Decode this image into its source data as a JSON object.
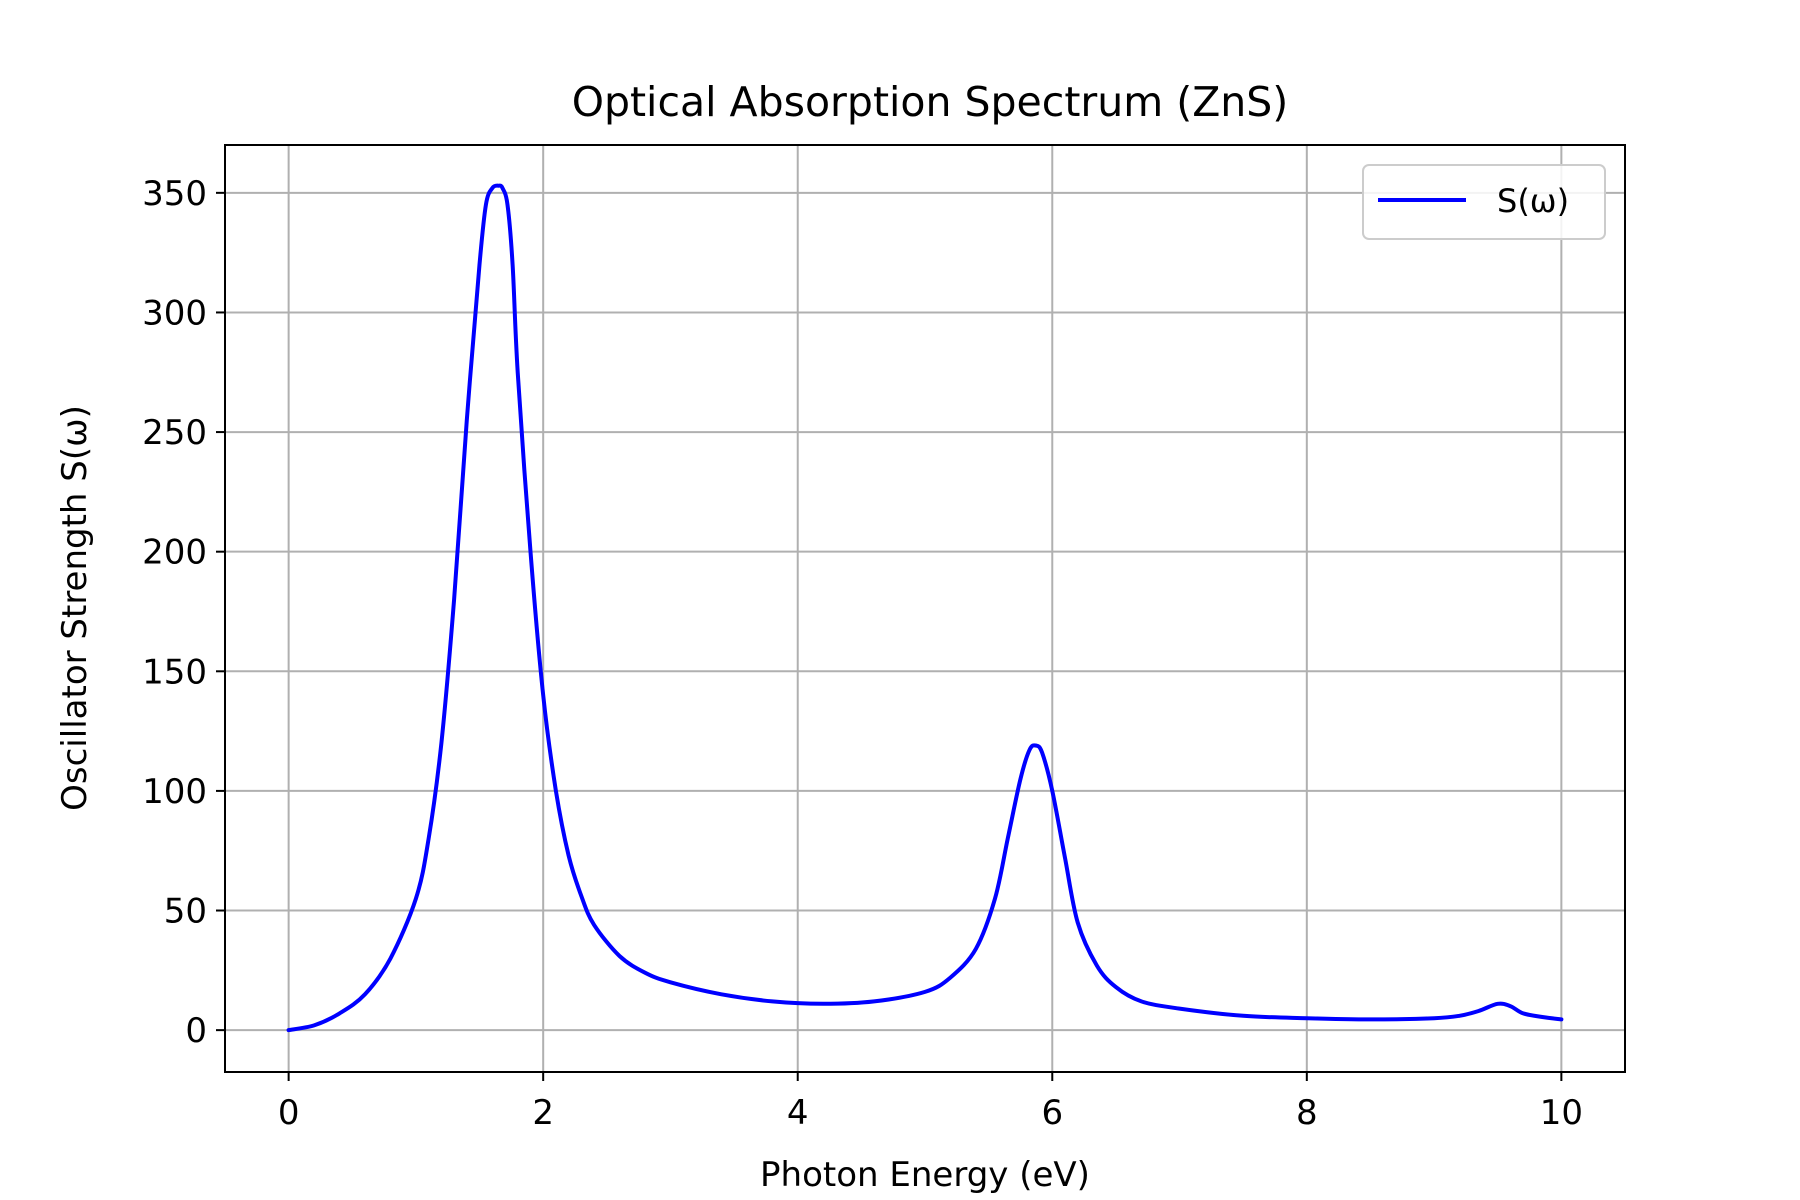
{
  "chart_data": {
    "type": "line",
    "title": "Optical Absorption Spectrum (ZnS)",
    "xlabel": "Photon Energy (eV)",
    "ylabel": "Oscillator Strength S(ω)",
    "xlim": [
      -0.5,
      10.5
    ],
    "ylim": [
      -17.5,
      370
    ],
    "xticks": [
      0,
      2,
      4,
      6,
      8,
      10
    ],
    "yticks": [
      0,
      50,
      100,
      150,
      200,
      250,
      300,
      350
    ],
    "grid": true,
    "legend_position": "top-right",
    "series": [
      {
        "name": "S(ω)",
        "color": "#0000ff",
        "x": [
          0,
          0.2,
          0.4,
          0.6,
          0.8,
          1.0,
          1.1,
          1.2,
          1.3,
          1.4,
          1.5,
          1.55,
          1.6,
          1.65,
          1.68,
          1.72,
          1.76,
          1.8,
          1.9,
          2.0,
          2.1,
          2.2,
          2.3,
          2.4,
          2.6,
          2.8,
          3.0,
          3.4,
          3.8,
          4.2,
          4.6,
          5.0,
          5.2,
          5.4,
          5.55,
          5.65,
          5.75,
          5.82,
          5.87,
          5.92,
          6.0,
          6.1,
          6.2,
          6.35,
          6.5,
          6.7,
          7.0,
          7.5,
          8.0,
          8.5,
          9.0,
          9.2,
          9.35,
          9.5,
          9.6,
          9.7,
          9.85,
          10.0
        ],
        "y": [
          0,
          2,
          7,
          15,
          30,
          55,
          80,
          120,
          180,
          255,
          320,
          345,
          352,
          353,
          352,
          345,
          320,
          275,
          200,
          140,
          100,
          73,
          56,
          44,
          31,
          24,
          20,
          15,
          12,
          11,
          12,
          16,
          22,
          34,
          55,
          80,
          105,
          117,
          119,
          116,
          100,
          72,
          45,
          27,
          18,
          12,
          9,
          6,
          5,
          4.5,
          5,
          6,
          8,
          11,
          10,
          7,
          5.5,
          4.5
        ]
      }
    ]
  }
}
